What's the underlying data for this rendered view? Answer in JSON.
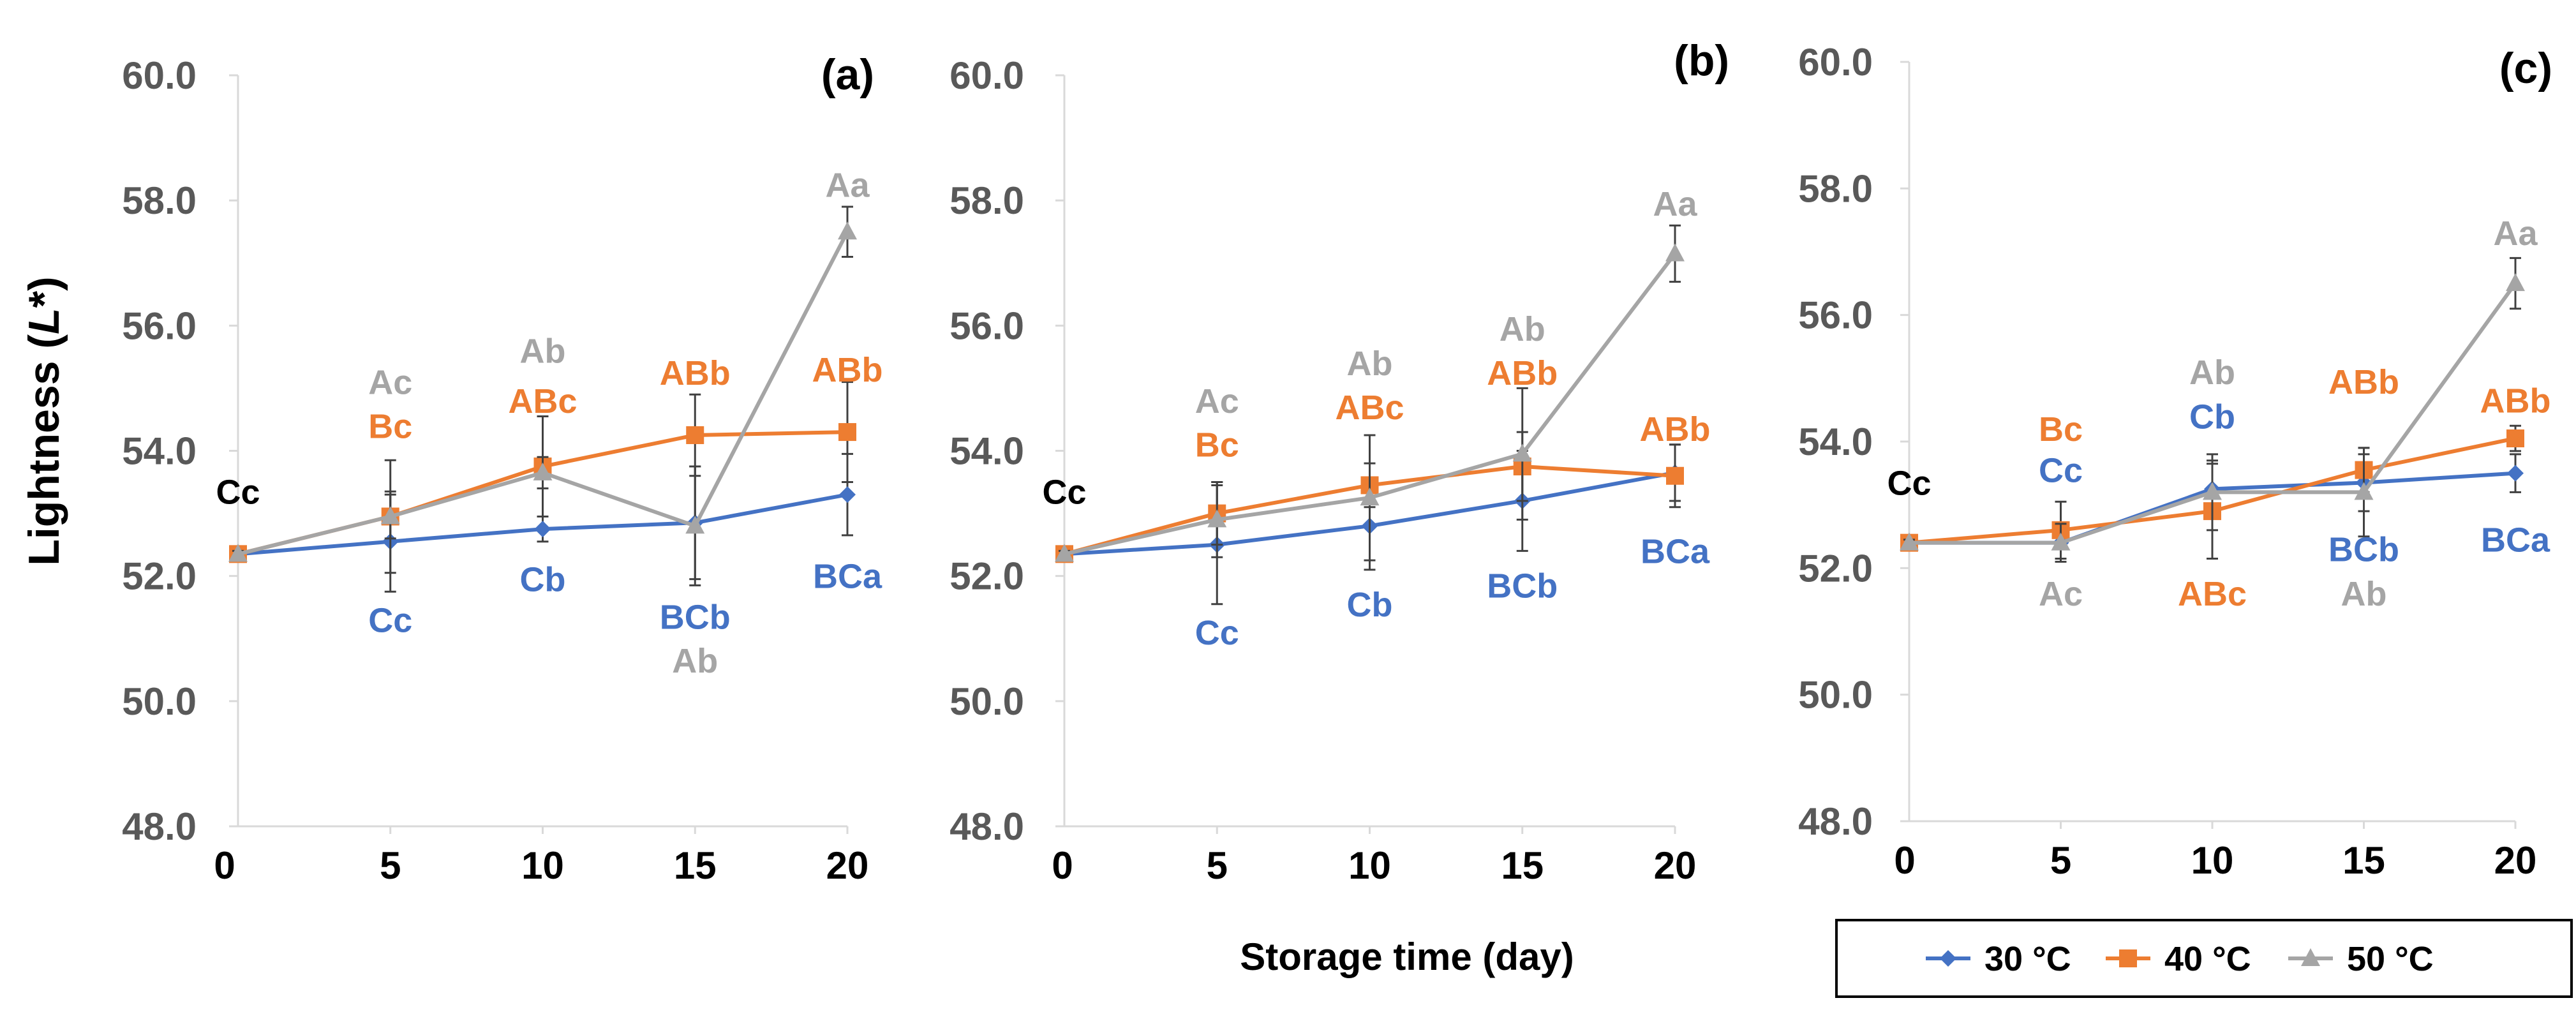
{
  "ylabel_main": "Lightness (",
  "ylabel_italic": "L",
  "ylabel_tail": "*)",
  "xlabel": "Storage time (day)",
  "series_colors": {
    "30 °C": "#4472C4",
    "40 °C": "#ED7D31",
    "50 °C": "#A5A5A5"
  },
  "legend": [
    {
      "name": "30 °C",
      "color": "#4472C4",
      "marker": "diamond"
    },
    {
      "name": "40 °C",
      "color": "#ED7D31",
      "marker": "square"
    },
    {
      "name": "50 °C",
      "color": "#A5A5A5",
      "marker": "triangle"
    }
  ],
  "chart_data": [
    {
      "type": "line",
      "panel_label": "(a)",
      "x": [
        0,
        5,
        10,
        15,
        20
      ],
      "ylim": [
        48.0,
        60.0
      ],
      "yticks": [
        "48.0",
        "50.0",
        "52.0",
        "54.0",
        "56.0",
        "58.0",
        "60.0"
      ],
      "xticks": [
        "0",
        "5",
        "10",
        "15",
        "20"
      ],
      "series": [
        {
          "name": "30 °C",
          "values": [
            52.35,
            52.55,
            52.75,
            52.85,
            53.3
          ],
          "errors": [
            0.05,
            0.8,
            0.2,
            0.9,
            0.65
          ]
        },
        {
          "name": "40 °C",
          "values": [
            52.35,
            52.95,
            53.75,
            54.25,
            54.3
          ],
          "errors": [
            0.05,
            0.35,
            0.8,
            0.65,
            0.8
          ]
        },
        {
          "name": "50 °C",
          "values": [
            52.35,
            52.95,
            53.65,
            52.8,
            57.5
          ],
          "errors": [
            0.05,
            0.9,
            0.25,
            0.95,
            0.4
          ]
        }
      ],
      "annotations": [
        {
          "text": "Cc",
          "x": 0,
          "y": 53.35,
          "series": "black"
        },
        {
          "text": "Ac",
          "x": 5,
          "y": 55.1,
          "series": "50 °C"
        },
        {
          "text": "Bc",
          "x": 5,
          "y": 54.4,
          "series": "40 °C"
        },
        {
          "text": "Cc",
          "x": 5,
          "y": 51.3,
          "series": "30 °C"
        },
        {
          "text": "Ab",
          "x": 10,
          "y": 55.6,
          "series": "50 °C"
        },
        {
          "text": "ABc",
          "x": 10,
          "y": 54.8,
          "series": "40 °C"
        },
        {
          "text": "Cb",
          "x": 10,
          "y": 51.95,
          "series": "30 °C"
        },
        {
          "text": "ABb",
          "x": 15,
          "y": 55.25,
          "series": "40 °C"
        },
        {
          "text": "BCb",
          "x": 15,
          "y": 51.35,
          "series": "30 °C"
        },
        {
          "text": "Ab",
          "x": 15,
          "y": 50.65,
          "series": "50 °C"
        },
        {
          "text": "Aa",
          "x": 20,
          "y": 58.25,
          "series": "50 °C"
        },
        {
          "text": "ABb",
          "x": 20,
          "y": 55.3,
          "series": "40 °C"
        },
        {
          "text": "BCa",
          "x": 20,
          "y": 52.0,
          "series": "30 °C"
        }
      ]
    },
    {
      "type": "line",
      "panel_label": "(b)",
      "x": [
        0,
        5,
        10,
        15,
        20
      ],
      "ylim": [
        48.0,
        60.0
      ],
      "yticks": [
        "48.0",
        "50.0",
        "52.0",
        "54.0",
        "56.0",
        "58.0",
        "60.0"
      ],
      "xticks": [
        "0",
        "5",
        "10",
        "15",
        "20"
      ],
      "series": [
        {
          "name": "30 °C",
          "values": [
            52.35,
            52.5,
            52.8,
            53.2,
            53.65
          ],
          "errors": [
            0.05,
            0.95,
            0.7,
            0.8,
            0.45
          ]
        },
        {
          "name": "40 °C",
          "values": [
            52.35,
            53.0,
            53.45,
            53.75,
            53.6
          ],
          "errors": [
            0.05,
            0.5,
            0.35,
            0.55,
            0.5
          ]
        },
        {
          "name": "50 °C",
          "values": [
            52.35,
            52.9,
            53.25,
            53.95,
            57.15
          ],
          "errors": [
            0.05,
            0.6,
            1.0,
            1.05,
            0.45
          ]
        }
      ],
      "annotations": [
        {
          "text": "Cc",
          "x": 0,
          "y": 53.35,
          "series": "black"
        },
        {
          "text": "Ac",
          "x": 5,
          "y": 54.8,
          "series": "50 °C"
        },
        {
          "text": "Bc",
          "x": 5,
          "y": 54.1,
          "series": "40 °C"
        },
        {
          "text": "Cc",
          "x": 5,
          "y": 51.1,
          "series": "30 °C"
        },
        {
          "text": "Ab",
          "x": 10,
          "y": 55.4,
          "series": "50 °C"
        },
        {
          "text": "ABc",
          "x": 10,
          "y": 54.7,
          "series": "40 °C"
        },
        {
          "text": "Cb",
          "x": 10,
          "y": 51.55,
          "series": "30 °C"
        },
        {
          "text": "Ab",
          "x": 15,
          "y": 55.95,
          "series": "50 °C"
        },
        {
          "text": "ABb",
          "x": 15,
          "y": 55.25,
          "series": "40 °C"
        },
        {
          "text": "BCb",
          "x": 15,
          "y": 51.85,
          "series": "30 °C"
        },
        {
          "text": "Aa",
          "x": 20,
          "y": 57.95,
          "series": "50 °C"
        },
        {
          "text": "ABb",
          "x": 20,
          "y": 54.35,
          "series": "40 °C"
        },
        {
          "text": "BCa",
          "x": 20,
          "y": 52.4,
          "series": "30 °C"
        }
      ]
    },
    {
      "type": "line",
      "panel_label": "(c)",
      "x": [
        0,
        5,
        10,
        15,
        20
      ],
      "ylim": [
        48.0,
        60.0
      ],
      "yticks": [
        "48.0",
        "50.0",
        "52.0",
        "54.0",
        "56.0",
        "58.0",
        "60.0"
      ],
      "xticks": [
        "0",
        "5",
        "10",
        "15",
        "20"
      ],
      "series": [
        {
          "name": "30 °C",
          "values": [
            52.4,
            52.4,
            53.25,
            53.35,
            53.5
          ],
          "errors": [
            0.05,
            0.25,
            0.45,
            0.45,
            0.3
          ]
        },
        {
          "name": "40 °C",
          "values": [
            52.4,
            52.6,
            52.9,
            53.55,
            54.05
          ],
          "errors": [
            0.05,
            0.45,
            0.75,
            0.35,
            0.2
          ]
        },
        {
          "name": "50 °C",
          "values": [
            52.4,
            52.4,
            53.2,
            53.2,
            56.5
          ],
          "errors": [
            0.05,
            0.3,
            0.6,
            0.7,
            0.4
          ]
        }
      ],
      "annotations": [
        {
          "text": "Cc",
          "x": 0,
          "y": 53.35,
          "series": "black"
        },
        {
          "text": "Bc",
          "x": 5,
          "y": 54.2,
          "series": "40 °C"
        },
        {
          "text": "Cc",
          "x": 5,
          "y": 53.55,
          "series": "30 °C"
        },
        {
          "text": "Ac",
          "x": 5,
          "y": 51.6,
          "series": "50 °C"
        },
        {
          "text": "Ab",
          "x": 10,
          "y": 55.1,
          "series": "50 °C"
        },
        {
          "text": "Cb",
          "x": 10,
          "y": 54.4,
          "series": "30 °C"
        },
        {
          "text": "ABc",
          "x": 10,
          "y": 51.6,
          "series": "40 °C"
        },
        {
          "text": "ABb",
          "x": 15,
          "y": 54.95,
          "series": "40 °C"
        },
        {
          "text": "BCb",
          "x": 15,
          "y": 52.3,
          "series": "30 °C"
        },
        {
          "text": "Ab",
          "x": 15,
          "y": 51.6,
          "series": "50 °C"
        },
        {
          "text": "Aa",
          "x": 20,
          "y": 57.3,
          "series": "50 °C"
        },
        {
          "text": "ABb",
          "x": 20,
          "y": 54.65,
          "series": "40 °C"
        },
        {
          "text": "BCa",
          "x": 20,
          "y": 52.45,
          "series": "30 °C"
        }
      ]
    }
  ]
}
